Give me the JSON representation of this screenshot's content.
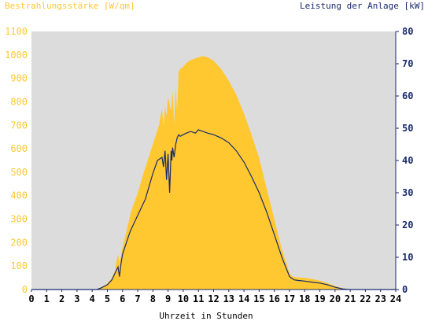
{
  "chart_data": {
    "type": "area",
    "left_axis_title": "Bestrahlungsstärke [W/qm]",
    "right_axis_title": "Leistung der Anlage [kW]",
    "xlabel": "Uhrzeit in Stunden",
    "xlim": [
      0,
      24
    ],
    "ylim_left": [
      0,
      1100
    ],
    "ylim_right": [
      0,
      80
    ],
    "x_ticks": [
      "0",
      "1",
      "2",
      "3",
      "4",
      "5",
      "6",
      "7",
      "8",
      "9",
      "10",
      "11",
      "12",
      "13",
      "14",
      "15",
      "16",
      "17",
      "18",
      "19",
      "20",
      "21",
      "22",
      "23",
      "24"
    ],
    "y_left_ticks": [
      "0",
      "100",
      "200",
      "300",
      "400",
      "500",
      "600",
      "700",
      "800",
      "900",
      "1000",
      "1100"
    ],
    "y_right_ticks": [
      "0",
      "10",
      "20",
      "30",
      "40",
      "50",
      "60",
      "70",
      "80"
    ],
    "grid": false,
    "colors": {
      "irradiance": "#ffc830",
      "power": "#1a2a6b",
      "plot_background": "#dcdcdc",
      "left_axis_text": "#ffc830",
      "right_axis_text": "#1a2a6b",
      "right_axis_line": "#1a2a6b",
      "x_axis_text": "#000000"
    },
    "series": [
      {
        "axis": "left",
        "style": "area",
        "x": [
          0,
          4.3,
          4.6,
          5.0,
          5.3,
          5.5,
          5.6,
          5.7,
          5.8,
          6.0,
          6.3,
          6.6,
          7.0,
          7.4,
          7.8,
          8.2,
          8.4,
          8.5,
          8.6,
          8.7,
          8.8,
          8.9,
          9.0,
          9.2,
          9.3,
          9.4,
          9.5,
          9.6,
          9.7,
          9.8,
          10.0,
          10.2,
          10.4,
          10.6,
          10.8,
          11.0,
          11.3,
          11.6,
          12.0,
          12.5,
          13.0,
          13.5,
          14.0,
          14.5,
          15.0,
          15.5,
          16.0,
          16.5,
          17.0,
          17.2,
          17.5,
          18.0,
          18.5,
          19.0,
          19.5,
          20.0,
          20.5,
          21.0,
          24
        ],
        "y": [
          0,
          0,
          10,
          25,
          50,
          80,
          120,
          150,
          110,
          180,
          260,
          340,
          410,
          500,
          580,
          660,
          700,
          740,
          770,
          700,
          780,
          740,
          820,
          760,
          850,
          700,
          860,
          760,
          930,
          940,
          950,
          965,
          975,
          980,
          985,
          990,
          995,
          990,
          975,
          940,
          890,
          830,
          750,
          660,
          560,
          430,
          300,
          170,
          70,
          55,
          52,
          50,
          45,
          38,
          28,
          15,
          5,
          0,
          0
        ]
      },
      {
        "axis": "right",
        "style": "line",
        "x": [
          0,
          4.3,
          4.6,
          5.0,
          5.3,
          5.6,
          5.7,
          5.8,
          5.9,
          6.0,
          6.5,
          7.0,
          7.5,
          8.0,
          8.3,
          8.6,
          8.7,
          8.8,
          8.9,
          9.0,
          9.1,
          9.2,
          9.25,
          9.3,
          9.4,
          9.5,
          9.6,
          9.7,
          9.8,
          10.0,
          10.2,
          10.5,
          10.8,
          11.0,
          11.3,
          11.6,
          12.0,
          12.5,
          13.0,
          13.5,
          14.0,
          14.5,
          15.0,
          15.5,
          16.0,
          16.5,
          17.0,
          17.3,
          17.6,
          18.0,
          18.5,
          19.0,
          19.5,
          20.0,
          20.5,
          21.0,
          24
        ],
        "y": [
          0,
          0,
          0.5,
          1.5,
          3,
          6,
          7,
          4,
          8,
          11,
          18,
          23,
          28,
          36,
          40,
          41,
          38,
          43,
          34,
          42,
          30,
          43,
          40,
          44,
          41,
          45,
          47,
          48,
          47.5,
          48,
          48.5,
          49,
          48.5,
          49.5,
          49,
          48.5,
          48,
          47,
          45.5,
          43,
          39.5,
          35,
          30,
          24,
          17,
          10,
          4,
          3,
          2.8,
          2.6,
          2.3,
          2,
          1.5,
          0.7,
          0.2,
          0,
          0
        ]
      }
    ]
  }
}
